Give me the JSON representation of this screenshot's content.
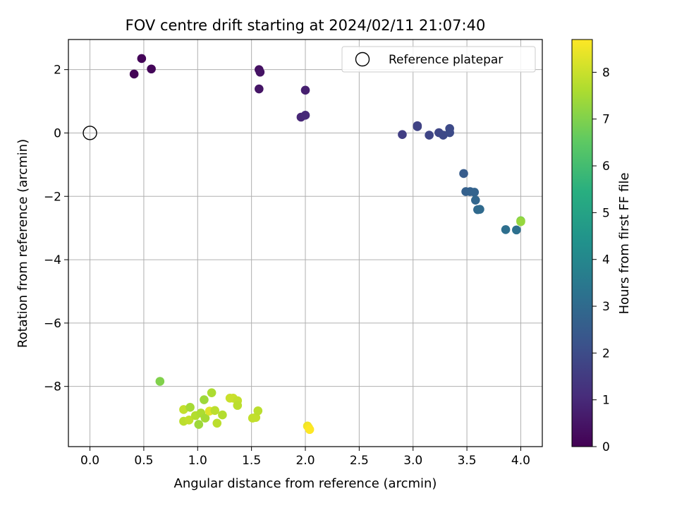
{
  "chart_data": {
    "type": "scatter",
    "title": "FOV centre drift starting at 2024/02/11 21:07:40",
    "xlabel": "Angular distance from reference (arcmin)",
    "ylabel": "Rotation from reference (arcmin)",
    "xlim": [
      -0.2,
      4.2
    ],
    "ylim": [
      -9.9,
      2.95
    ],
    "xticks": [
      "0.0",
      "0.5",
      "1.0",
      "1.5",
      "2.0",
      "2.5",
      "3.0",
      "3.5",
      "4.0"
    ],
    "yticks": [
      "2",
      "0",
      "−2",
      "−4",
      "−6",
      "−8"
    ],
    "grid": true,
    "legend": {
      "location": "top-right",
      "entries": [
        "Reference platepar"
      ]
    },
    "reference_point": {
      "x": 0.0,
      "y": 0.0
    },
    "colorbar": {
      "label": "Hours from first FF file",
      "min": 0,
      "max": 8.7,
      "ticks": [
        "0",
        "1",
        "2",
        "3",
        "4",
        "5",
        "6",
        "7",
        "8"
      ],
      "colormap": "viridis"
    },
    "points": [
      {
        "x": 0.41,
        "y": 1.86,
        "h": 0.05
      },
      {
        "x": 0.48,
        "y": 2.35,
        "h": 0.1
      },
      {
        "x": 0.57,
        "y": 2.02,
        "h": 0.15
      },
      {
        "x": 1.57,
        "y": 2.0,
        "h": 0.4
      },
      {
        "x": 1.58,
        "y": 1.92,
        "h": 0.45
      },
      {
        "x": 1.57,
        "y": 1.39,
        "h": 0.5
      },
      {
        "x": 2.0,
        "y": 1.35,
        "h": 0.75
      },
      {
        "x": 1.96,
        "y": 0.5,
        "h": 0.95
      },
      {
        "x": 2.0,
        "y": 0.56,
        "h": 1.0
      },
      {
        "x": 2.9,
        "y": -0.05,
        "h": 1.6
      },
      {
        "x": 3.04,
        "y": 0.23,
        "h": 1.7
      },
      {
        "x": 3.04,
        "y": 0.2,
        "h": 1.72
      },
      {
        "x": 3.15,
        "y": -0.07,
        "h": 1.8
      },
      {
        "x": 3.24,
        "y": 0.01,
        "h": 1.85
      },
      {
        "x": 3.28,
        "y": -0.07,
        "h": 1.9
      },
      {
        "x": 3.34,
        "y": 0.14,
        "h": 1.95
      },
      {
        "x": 3.34,
        "y": 0.01,
        "h": 1.98
      },
      {
        "x": 3.47,
        "y": -1.28,
        "h": 2.5
      },
      {
        "x": 3.49,
        "y": -1.85,
        "h": 2.65
      },
      {
        "x": 3.53,
        "y": -1.85,
        "h": 2.7
      },
      {
        "x": 3.57,
        "y": -1.87,
        "h": 2.75
      },
      {
        "x": 3.58,
        "y": -2.12,
        "h": 2.85
      },
      {
        "x": 3.6,
        "y": -2.42,
        "h": 2.95
      },
      {
        "x": 3.62,
        "y": -2.41,
        "h": 3.0
      },
      {
        "x": 3.86,
        "y": -3.05,
        "h": 3.15
      },
      {
        "x": 3.96,
        "y": -3.06,
        "h": 3.2
      },
      {
        "x": 4.0,
        "y": -2.77,
        "h": 7.0
      },
      {
        "x": 4.0,
        "y": -2.8,
        "h": 7.3
      },
      {
        "x": 0.65,
        "y": -7.84,
        "h": 7.0
      },
      {
        "x": 0.87,
        "y": -8.73,
        "h": 7.9
      },
      {
        "x": 0.93,
        "y": -8.66,
        "h": 7.5
      },
      {
        "x": 0.87,
        "y": -9.1,
        "h": 7.8
      },
      {
        "x": 0.92,
        "y": -9.06,
        "h": 7.9
      },
      {
        "x": 0.98,
        "y": -8.92,
        "h": 7.7
      },
      {
        "x": 1.01,
        "y": -9.2,
        "h": 7.4
      },
      {
        "x": 1.03,
        "y": -8.84,
        "h": 7.6
      },
      {
        "x": 1.06,
        "y": -8.42,
        "h": 7.4
      },
      {
        "x": 1.07,
        "y": -9.0,
        "h": 7.5
      },
      {
        "x": 1.11,
        "y": -8.78,
        "h": 8.3
      },
      {
        "x": 1.13,
        "y": -8.2,
        "h": 7.6
      },
      {
        "x": 1.16,
        "y": -8.76,
        "h": 7.8
      },
      {
        "x": 1.18,
        "y": -9.16,
        "h": 7.8
      },
      {
        "x": 1.23,
        "y": -8.9,
        "h": 7.7
      },
      {
        "x": 1.3,
        "y": -8.37,
        "h": 8.0
      },
      {
        "x": 1.33,
        "y": -8.37,
        "h": 8.0
      },
      {
        "x": 1.37,
        "y": -8.45,
        "h": 7.9
      },
      {
        "x": 1.37,
        "y": -8.6,
        "h": 7.8
      },
      {
        "x": 1.51,
        "y": -9.0,
        "h": 7.9
      },
      {
        "x": 1.54,
        "y": -8.98,
        "h": 7.9
      },
      {
        "x": 1.56,
        "y": -8.77,
        "h": 7.8
      },
      {
        "x": 2.02,
        "y": -9.25,
        "h": 8.5
      },
      {
        "x": 2.03,
        "y": -9.3,
        "h": 8.6
      },
      {
        "x": 2.04,
        "y": -9.36,
        "h": 8.7
      }
    ]
  }
}
